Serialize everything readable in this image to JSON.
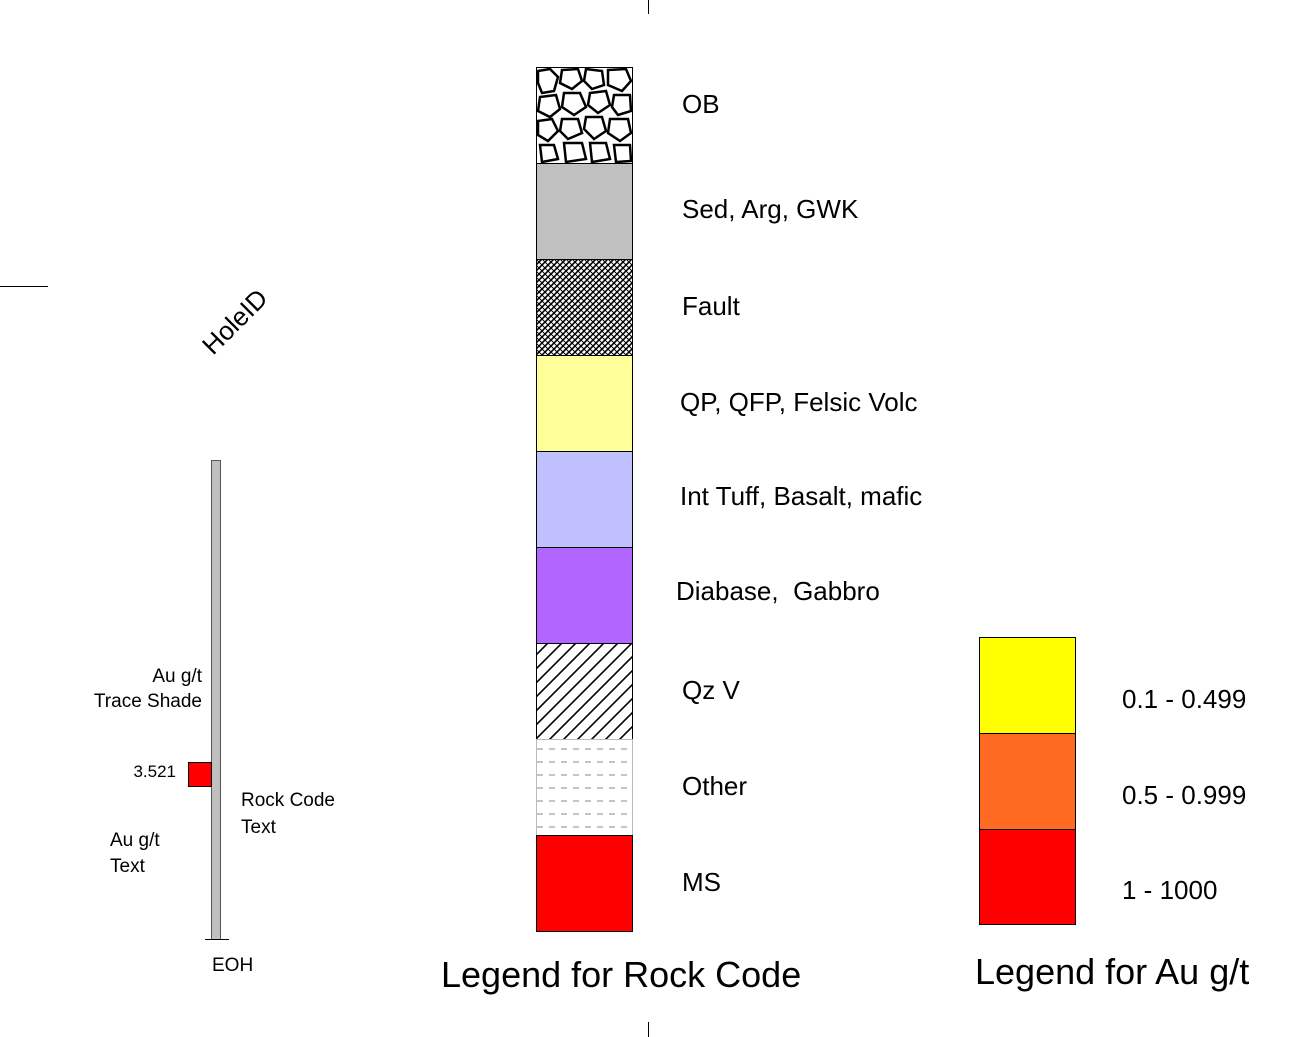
{
  "hole": {
    "title": "HoleID",
    "trace_shade_label": "Au g/t\nTrace Shade",
    "sample_value": "3.521",
    "sample_color": "#ff0000",
    "rock_text_label": "Rock Code\nText",
    "au_text_label": "Au g/t\nText",
    "eoh_label": "EOH"
  },
  "rock_legend": {
    "title": "Legend for Rock Code",
    "items": [
      {
        "label": "OB",
        "fill": "pattern-rocks"
      },
      {
        "label": "Sed, Arg, GWK",
        "fill": "#c0c0c0"
      },
      {
        "label": "Fault",
        "fill": "pattern-crosshatch"
      },
      {
        "label": "QP, QFP, Felsic Volc",
        "fill": "#ffff99"
      },
      {
        "label": "Int Tuff, Basalt, mafic",
        "fill": "#c0c0ff"
      },
      {
        "label": "Diabase,  Gabbro",
        "fill": "#b366ff"
      },
      {
        "label": "Qz V",
        "fill": "pattern-diagonal"
      },
      {
        "label": "Other",
        "fill": "pattern-dashes"
      },
      {
        "label": "MS",
        "fill": "#ff0000"
      }
    ]
  },
  "au_legend": {
    "title": "Legend for Au g/t",
    "items": [
      {
        "label": "0.1 - 0.499",
        "fill": "#ffff00"
      },
      {
        "label": "0.5 - 0.999",
        "fill": "#ff6a22"
      },
      {
        "label": "1 - 1000",
        "fill": "#ff0000"
      }
    ]
  }
}
